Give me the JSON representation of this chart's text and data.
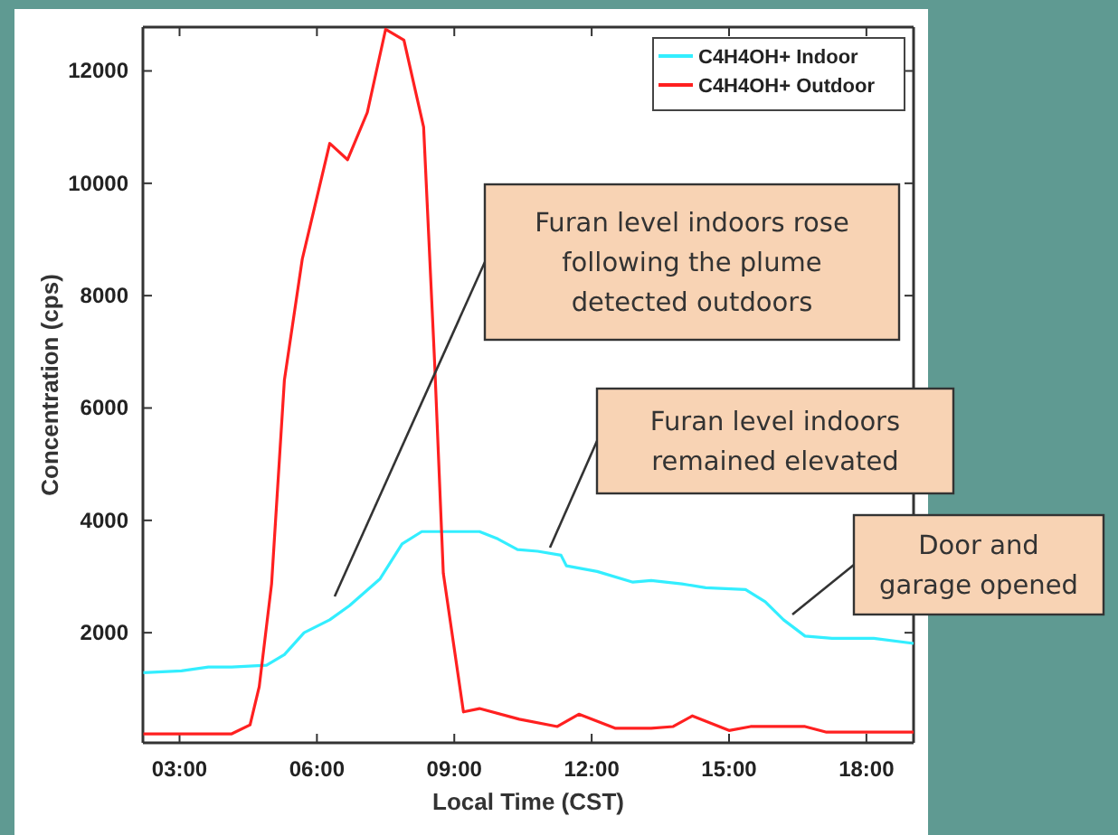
{
  "chart_data": {
    "type": "line",
    "xlabel": "Local Time (CST)",
    "ylabel": "Concentration (cps)",
    "xlim": [
      2.2,
      19.03
    ],
    "ylim": [
      40,
      12780
    ],
    "xticks": [
      {
        "value": 3,
        "label": "03:00"
      },
      {
        "value": 6,
        "label": "06:00"
      },
      {
        "value": 9,
        "label": "09:00"
      },
      {
        "value": 12,
        "label": "12:00"
      },
      {
        "value": 15,
        "label": "15:00"
      },
      {
        "value": 18,
        "label": "18:00"
      }
    ],
    "yticks": [
      2000,
      4000,
      6000,
      8000,
      10000,
      12000
    ],
    "legend": "top right",
    "grid": false,
    "marker": "none",
    "line_style": "solid",
    "series": [
      {
        "name": "C4H4OH+ Indoor",
        "color": "#33eeff",
        "x": [
          2.21,
          3.04,
          3.63,
          4.14,
          4.9,
          5.29,
          5.72,
          6.28,
          6.71,
          7.38,
          7.86,
          8.29,
          9.55,
          9.95,
          10.38,
          10.82,
          11.33,
          11.45,
          12.12,
          12.9,
          13.3,
          13.97,
          14.49,
          15.36,
          15.79,
          16.19,
          16.66,
          17.25,
          18.16,
          19.03
        ],
        "values": [
          1290,
          1320,
          1390,
          1390,
          1420,
          1610,
          2000,
          2230,
          2480,
          2960,
          3580,
          3800,
          3800,
          3670,
          3480,
          3450,
          3380,
          3190,
          3090,
          2900,
          2930,
          2870,
          2800,
          2770,
          2550,
          2230,
          1940,
          1900,
          1900,
          1810
        ]
      },
      {
        "name": "C4H4OH+ Outdoor",
        "color": "#ff2020",
        "x": [
          2.21,
          4.14,
          4.54,
          4.74,
          5.01,
          5.29,
          5.68,
          6.28,
          6.67,
          7.1,
          7.5,
          7.9,
          8.33,
          8.57,
          8.76,
          9.2,
          9.55,
          10.42,
          11.25,
          11.72,
          12.51,
          13.3,
          13.78,
          14.2,
          15.0,
          15.47,
          16.66,
          17.13,
          19.03
        ],
        "values": [
          200,
          200,
          360,
          1040,
          2870,
          6500,
          8650,
          10710,
          10420,
          11260,
          12740,
          12550,
          11000,
          6820,
          3060,
          590,
          650,
          460,
          330,
          550,
          300,
          300,
          330,
          520,
          260,
          330,
          330,
          230,
          230
        ]
      }
    ],
    "annotations": [
      "Furan level indoors rose\nfollowing the plume\ndetected outdoors",
      "Furan level indoors\nremained elevated",
      "Door and\ngarage opened"
    ]
  }
}
